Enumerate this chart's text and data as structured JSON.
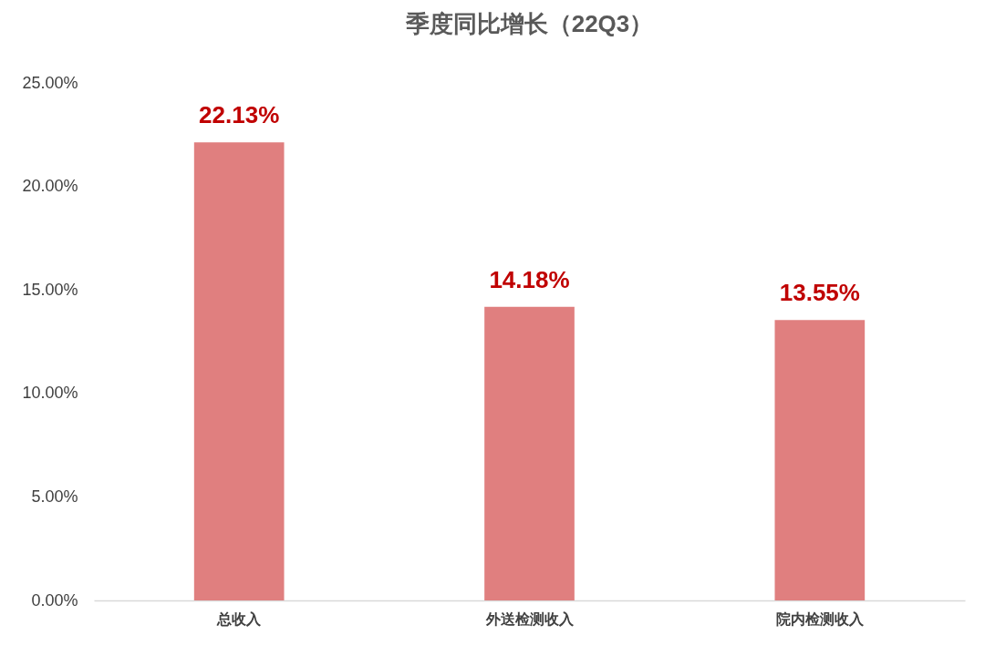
{
  "chart_data": {
    "type": "bar",
    "title": "季度同比增长（22Q3）",
    "categories": [
      "总收入",
      "外送检测收入",
      "院内检测收入"
    ],
    "series": [
      {
        "color": "#e07f7f",
        "values": [
          22.13,
          14.18,
          13.55
        ],
        "value_labels": [
          "22.13%",
          "14.18%",
          "13.55%"
        ]
      }
    ],
    "ylim": [
      0,
      25
    ],
    "yticks": [
      {
        "value": 0,
        "label": "0.00%"
      },
      {
        "value": 5,
        "label": "5.00%"
      },
      {
        "value": 10,
        "label": "10.00%"
      },
      {
        "value": 15,
        "label": "15.00%"
      },
      {
        "value": 20,
        "label": "20.00%"
      },
      {
        "value": 25,
        "label": "25.00%"
      }
    ],
    "grid": false,
    "legend": false
  }
}
